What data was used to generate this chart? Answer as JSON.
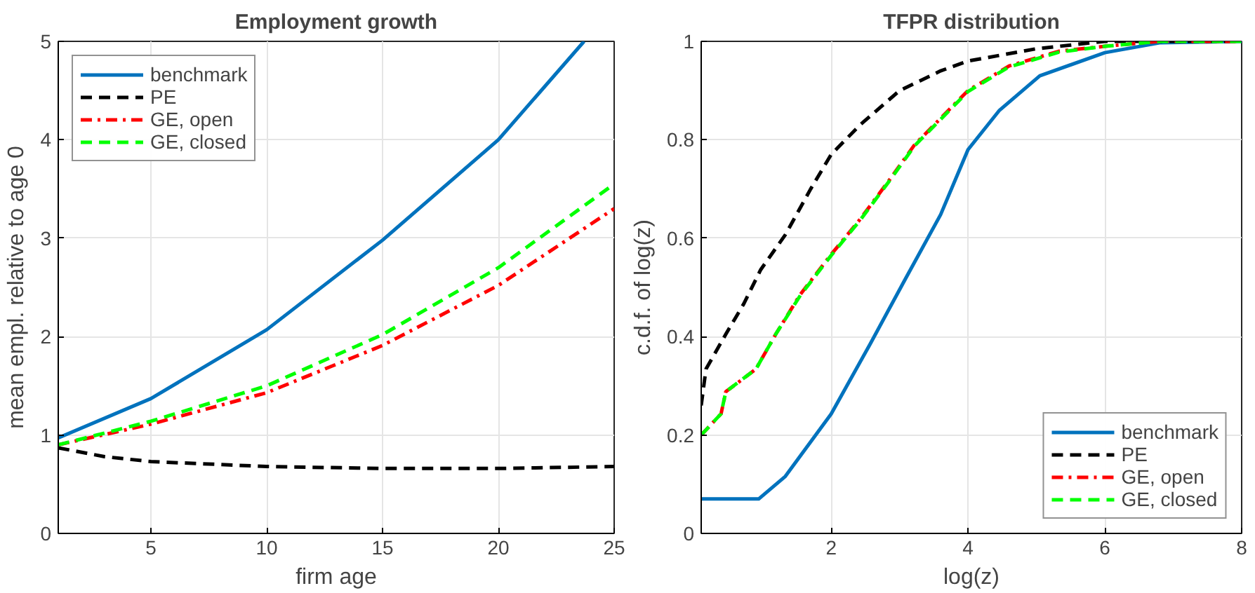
{
  "chart_data": [
    {
      "type": "line",
      "title": "Employment growth",
      "xlabel": "firm age",
      "ylabel": "mean empl. relative to age 0",
      "xlim": [
        1,
        25
      ],
      "ylim": [
        0,
        5
      ],
      "xticks": [
        5,
        10,
        15,
        20,
        25
      ],
      "yticks": [
        0,
        1,
        2,
        3,
        4,
        5
      ],
      "grid": true,
      "legend": "top left",
      "series": [
        {
          "name": "benchmark",
          "color": "#0072bd",
          "line_style": "solid",
          "x": [
            1,
            5,
            10,
            15,
            20,
            23.7
          ],
          "values": [
            0.97,
            1.37,
            2.07,
            2.98,
            4.0,
            5.0
          ]
        },
        {
          "name": "PE",
          "color": "#000000",
          "line_style": "dashed",
          "x": [
            1,
            3,
            5,
            10,
            15,
            20,
            25
          ],
          "values": [
            0.87,
            0.78,
            0.73,
            0.68,
            0.66,
            0.66,
            0.68
          ]
        },
        {
          "name": "GE, open",
          "color": "#ff0000",
          "line_style": "dashdot",
          "x": [
            1,
            5,
            10,
            15,
            20,
            25
          ],
          "values": [
            0.9,
            1.11,
            1.43,
            1.91,
            2.52,
            3.3
          ]
        },
        {
          "name": "GE, closed",
          "color": "#00ff00",
          "line_style": "dashed",
          "x": [
            1,
            5,
            10,
            15,
            20,
            25
          ],
          "values": [
            0.9,
            1.14,
            1.5,
            2.02,
            2.7,
            3.55
          ]
        }
      ]
    },
    {
      "type": "line",
      "title": "TFPR distribution",
      "xlabel": "log(z)",
      "ylabel": "c.d.f. of log(z)",
      "xlim": [
        0.1,
        8
      ],
      "ylim": [
        0,
        1
      ],
      "xticks": [
        2,
        4,
        6,
        8
      ],
      "yticks": [
        0,
        0.2,
        0.4,
        0.6,
        0.8,
        1
      ],
      "grid": true,
      "legend": "bottom right",
      "series": [
        {
          "name": "benchmark",
          "color": "#0072bd",
          "line_style": "solid",
          "x": [
            0.1,
            0.94,
            1.33,
            2,
            2.57,
            3.08,
            3.6,
            4,
            4.46,
            5.05,
            6,
            6.8,
            8
          ],
          "values": [
            0.07,
            0.07,
            0.116,
            0.243,
            0.385,
            0.516,
            0.648,
            0.78,
            0.86,
            0.93,
            0.977,
            0.997,
            1
          ]
        },
        {
          "name": "PE",
          "color": "#000000",
          "line_style": "dashed",
          "x": [
            0.1,
            0.17,
            0.46,
            0.72,
            0.97,
            1.33,
            1.7,
            2,
            2.42,
            3,
            3.6,
            4,
            5,
            6,
            8
          ],
          "values": [
            0.26,
            0.334,
            0.405,
            0.466,
            0.536,
            0.607,
            0.7,
            0.77,
            0.83,
            0.9,
            0.94,
            0.96,
            0.985,
            1,
            1
          ]
        },
        {
          "name": "GE, open",
          "color": "#ff0000",
          "line_style": "dashdot",
          "x": [
            0.1,
            0.39,
            0.46,
            0.9,
            1.19,
            1.55,
            2,
            2.42,
            2.86,
            3.22,
            4,
            4.6,
            5.33,
            6,
            6.8,
            8
          ],
          "values": [
            0.2,
            0.243,
            0.288,
            0.334,
            0.405,
            0.486,
            0.567,
            0.638,
            0.72,
            0.79,
            0.9,
            0.95,
            0.98,
            0.99,
            1,
            1
          ]
        },
        {
          "name": "GE, closed",
          "color": "#00ff00",
          "line_style": "dashed",
          "x": [
            0.1,
            0.39,
            0.46,
            0.9,
            1.19,
            1.55,
            2,
            2.42,
            2.86,
            3.22,
            4,
            4.6,
            5.33,
            6,
            6.8,
            8
          ],
          "values": [
            0.2,
            0.243,
            0.288,
            0.334,
            0.405,
            0.484,
            0.565,
            0.636,
            0.718,
            0.788,
            0.898,
            0.948,
            0.978,
            0.99,
            1,
            1
          ]
        }
      ]
    }
  ]
}
